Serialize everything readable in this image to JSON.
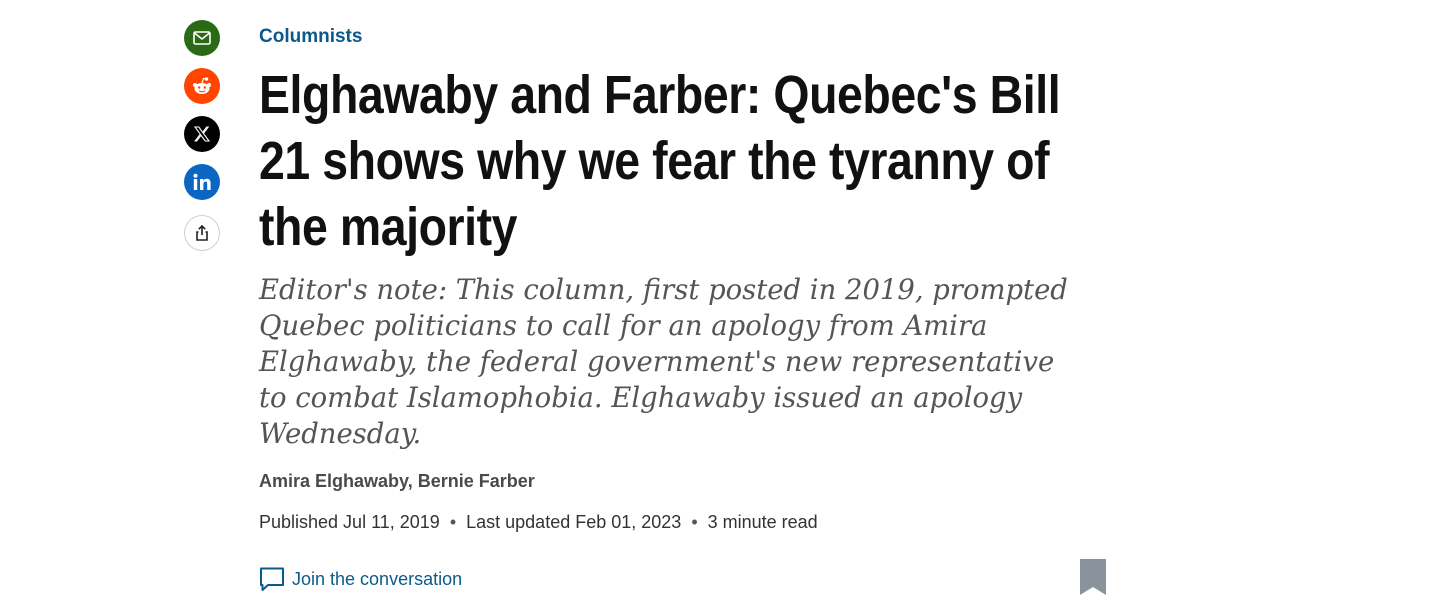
{
  "share": {
    "icons": [
      "email-icon",
      "reddit-icon",
      "x-icon",
      "linkedin-icon",
      "share-icon"
    ],
    "colors": {
      "email": "#2a6a17",
      "reddit": "#ff4500",
      "x": "#000000",
      "linkedin": "#0a66c2"
    }
  },
  "article": {
    "section": "Columnists",
    "headline": "Elghawaby and Farber: Quebec's Bill 21 shows why we fear the tyranny of the majority",
    "deck": "Editor's note: This column, first posted in 2019, prompted Quebec politicians to call for an apology from Amira Elghawaby, the federal government's new representative to combat Islamophobia. Elghawaby issued an apology Wednesday.",
    "byline": "Amira Elghawaby, Bernie Farber",
    "published": "Published Jul 11, 2019",
    "updated": "Last updated Feb 01, 2023",
    "read_time": "3 minute read",
    "separator": "•",
    "conversation_label": "Join the conversation"
  },
  "colors": {
    "accent": "#0b5a8b",
    "headline": "#111111",
    "deck": "#555555",
    "bookmark": "#8a929c"
  }
}
